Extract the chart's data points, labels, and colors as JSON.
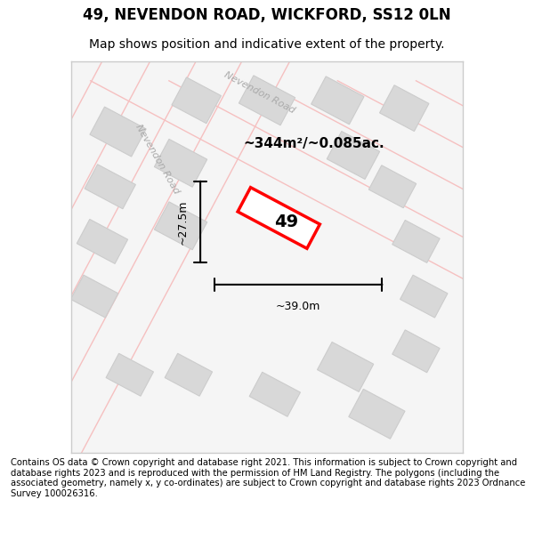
{
  "title_line1": "49, NEVENDON ROAD, WICKFORD, SS12 0LN",
  "title_line2": "Map shows position and indicative extent of the property.",
  "footer_text": "Contains OS data © Crown copyright and database right 2021. This information is subject to Crown copyright and database rights 2023 and is reproduced with the permission of HM Land Registry. The polygons (including the associated geometry, namely x, y co-ordinates) are subject to Crown copyright and database rights 2023 Ordnance Survey 100026316.",
  "map_bg": "#f5f5f5",
  "fig_bg": "#ffffff",
  "map_border_color": "#cccccc",
  "road_color_light": "#f5c0c0",
  "road_color_dark": "#e08080",
  "block_color": "#d8d8d8",
  "block_outline": "#cccccc",
  "highlight_color": "#ff0000",
  "highlight_fill": "#ffffff",
  "text_color": "#000000",
  "road_label_color": "#aaaaaa",
  "area_label": "~344m²/~0.085ac.",
  "width_label": "~39.0m",
  "height_label": "~27.5m",
  "number_label": "49",
  "road1_label": "Nevendon Road",
  "road2_label": "Nevendon Road"
}
